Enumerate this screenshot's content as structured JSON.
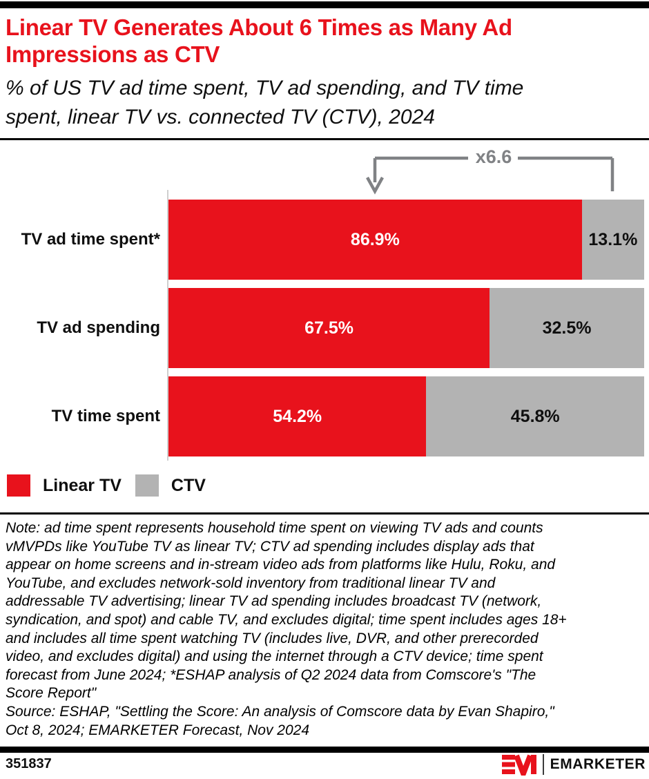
{
  "title": "Linear TV Generates About 6 Times as Many Ad\nImpressions as CTV",
  "subtitle": "% of US TV ad time spent, TV ad spending, and TV time\nspent, linear TV vs. connected TV (CTV), 2024",
  "chart_data": {
    "type": "bar",
    "orientation": "horizontal",
    "stacked": true,
    "unit": "%",
    "xlim": [
      0,
      100
    ],
    "grid": false,
    "legend_position": "bottom-left",
    "categories": [
      "TV ad time spent*",
      "TV ad spending",
      "TV time spent"
    ],
    "series": [
      {
        "name": "Linear TV",
        "color": "#e8121c",
        "values": [
          86.9,
          67.5,
          54.2
        ]
      },
      {
        "name": "CTV",
        "color": "#b3b3b3",
        "values": [
          13.1,
          32.5,
          45.8
        ]
      }
    ],
    "annotation": {
      "label": "x6.6",
      "target_category": "TV ad time spent*"
    }
  },
  "note": "Note: ad time spent represents household time spent on viewing TV ads and counts\nvMVPDs like YouTube TV as linear TV; CTV ad spending includes display ads that\nappear on home screens and in-stream video ads from platforms like Hulu, Roku, and\nYouTube, and excludes network-sold inventory from traditional linear TV and\naddressable TV advertising; linear TV ad spending includes broadcast TV (network,\nsyndication, and spot) and cable TV, and excludes digital; time spent includes ages 18+\nand includes all time spent watching TV (includes live, DVR, and other prerecorded\nvideo, and excludes digital) and using the internet through a CTV device; time spent\nforecast from June 2024; *ESHAP analysis of Q2 2024 data from Comscore's \"The\nScore Report\"",
  "source": "Source: ESHAP, \"Settling the Score: An analysis of Comscore data by Evan Shapiro,\"\nOct 8, 2024; EMARKETER Forecast, Nov 2024",
  "footer": {
    "chart_id": "351837",
    "brand": "EMARKETER"
  },
  "colors": {
    "accent_red": "#e8121c",
    "bar_gray": "#b3b3b3",
    "annotation_gray": "#808285",
    "axis_line": "#cfcfcf",
    "border_black": "#000000"
  }
}
